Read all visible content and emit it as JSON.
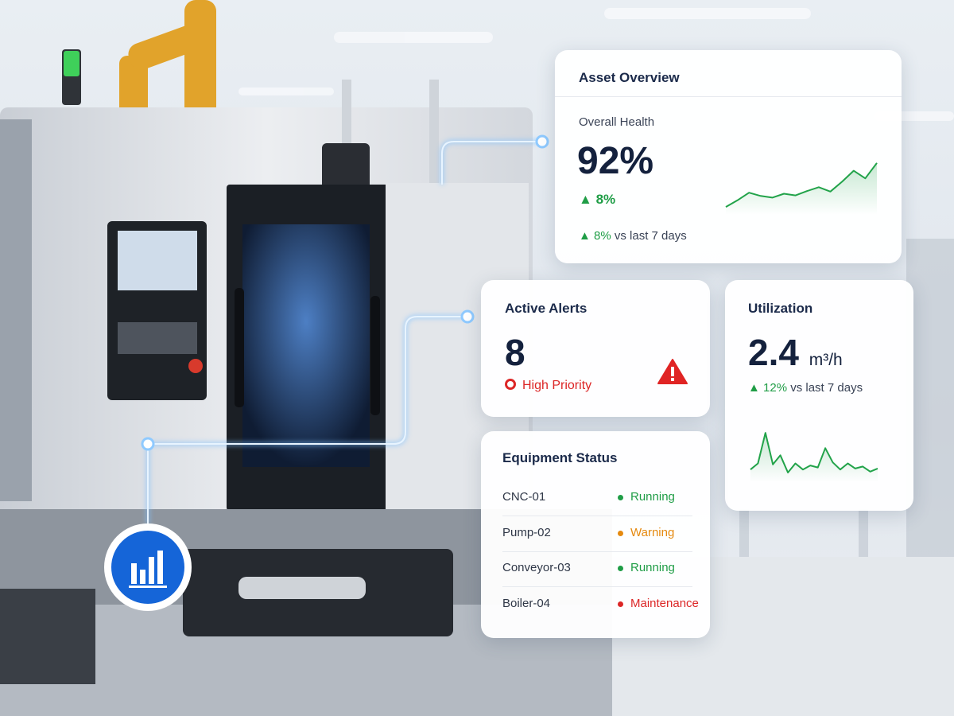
{
  "asset_overview": {
    "title": "Asset Overview",
    "label": "Overall Health",
    "value": "92%",
    "delta": "8%",
    "trend": {
      "value": "8%",
      "text": "vs last 7 days"
    },
    "sparkline": {
      "values": [
        10,
        22,
        36,
        30,
        27,
        34,
        31,
        39,
        46,
        38,
        56,
        76,
        62,
        90
      ],
      "ylim": [
        0,
        100
      ],
      "color": "#22a34a"
    }
  },
  "active_alerts": {
    "title": "Active Alerts",
    "value": "8",
    "priority": "High Priority"
  },
  "utilization": {
    "title": "Utilization",
    "value": "2.4",
    "unit": "m³/h",
    "trend": {
      "value": "12%",
      "text": "vs last 7 days"
    },
    "sparkline": {
      "values": [
        20,
        32,
        92,
        30,
        48,
        14,
        32,
        20,
        28,
        24,
        62,
        34,
        20,
        32,
        22,
        26,
        16,
        22
      ],
      "ylim": [
        0,
        100
      ],
      "color": "#22a34a"
    }
  },
  "equipment_status": {
    "title": "Equipment Status",
    "rows": [
      {
        "name": "CNC-01",
        "status": "Running",
        "color": "#1f9d46"
      },
      {
        "name": "Pump-02",
        "status": "Warning",
        "color": "#e58a0f"
      },
      {
        "name": "Conveyor-03",
        "status": "Running",
        "color": "#1f9d46"
      },
      {
        "name": "Boiler-04",
        "status": "Maintenance",
        "color": "#dc2626"
      }
    ]
  }
}
